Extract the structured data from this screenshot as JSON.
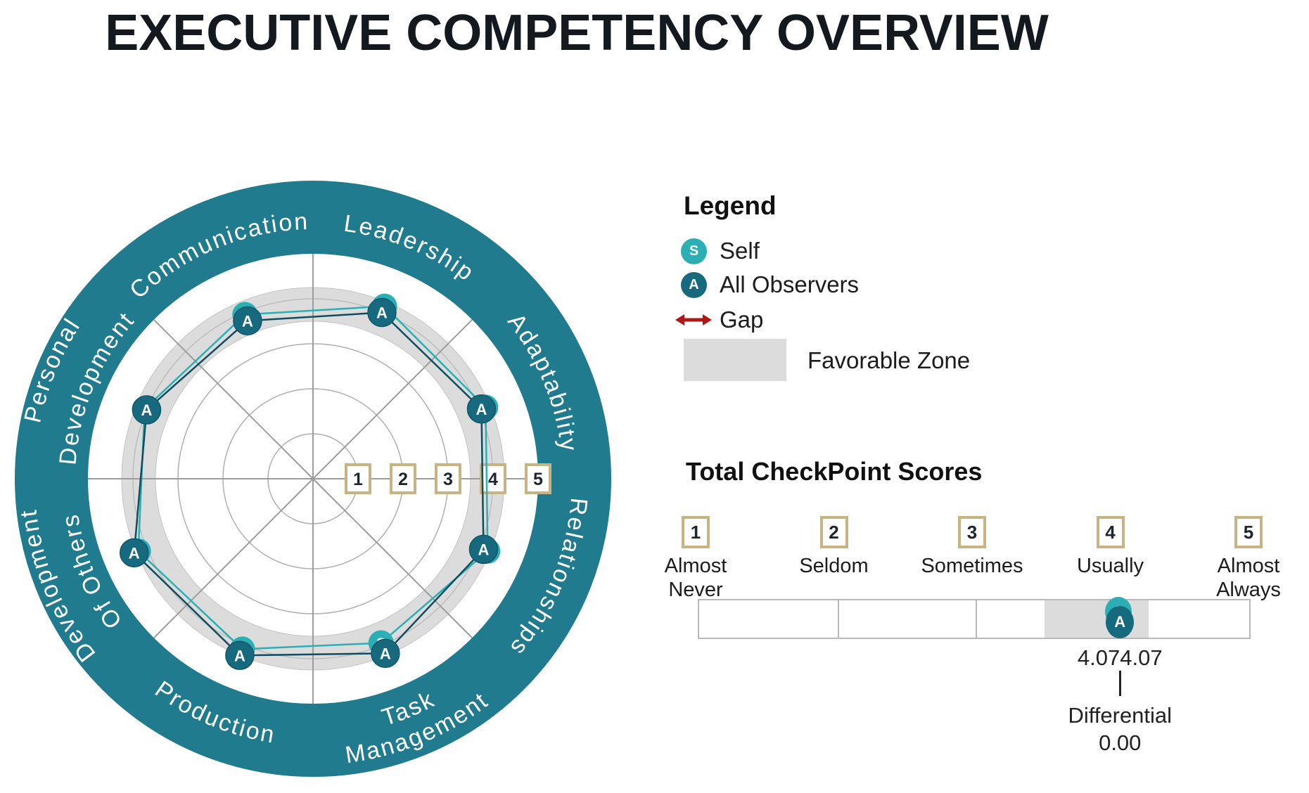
{
  "title": "EXECUTIVE COMPETENCY OVERVIEW",
  "legend": {
    "heading": "Legend",
    "items": [
      {
        "symbol": "S",
        "label": "Self"
      },
      {
        "symbol": "A",
        "label": "All Observers"
      },
      {
        "symbol": "gap-arrow",
        "label": "Gap"
      },
      {
        "symbol": "favorable-swatch",
        "label": "Favorable Zone"
      }
    ]
  },
  "colors": {
    "ring_teal": "#1F7B8D",
    "self_teal": "#2BAFB4",
    "observers_dark": "#17697E",
    "observers_dark_edge": "#10566A",
    "self_line": "#2BAFB4",
    "observers_line": "#114C5F",
    "favorable_gray": "#DCDCDC",
    "grid_gray": "#AFAFAF",
    "spoke_gray": "#9C9C9C",
    "box_border_tan": "#C8B382",
    "gap_red": "#AE1917",
    "text_black": "#1A1A1A"
  },
  "chart_data": [
    {
      "type": "radar",
      "title": "",
      "categories": [
        "Adaptability",
        "Leadership",
        "Communication",
        "Personal Development",
        "Development Of Others",
        "Production",
        "Task Management",
        "Relationships"
      ],
      "angles_deg": [
        22.5,
        67.5,
        112.5,
        157.5,
        202.5,
        247.5,
        292.5,
        337.5
      ],
      "scale": {
        "min": 0,
        "max": 5,
        "ticks": [
          1,
          2,
          3,
          4,
          5
        ]
      },
      "favorable_zone": [
        3.5,
        4.25
      ],
      "grid": true,
      "series": [
        {
          "name": "Self",
          "symbol": "S",
          "values": [
            4.15,
            4.15,
            3.95,
            4.05,
            4.2,
            4.1,
            3.95,
            4.2
          ]
        },
        {
          "name": "All Observers",
          "symbol": "A",
          "values": [
            4.05,
            4.0,
            3.8,
            4.0,
            4.3,
            4.25,
            4.2,
            4.1
          ]
        }
      ]
    },
    {
      "type": "scale",
      "title": "Total CheckPoint Scores",
      "min": 1,
      "max": 5,
      "ticks": [
        {
          "value": 1,
          "label": "Almost Never"
        },
        {
          "value": 2,
          "label": "Seldom"
        },
        {
          "value": 3,
          "label": "Sometimes"
        },
        {
          "value": 4,
          "label": "Usually"
        },
        {
          "value": 5,
          "label": "Almost Always"
        }
      ],
      "favorable_zone": [
        3.5,
        4.25
      ],
      "markers": [
        {
          "name": "Self",
          "symbol": "S",
          "value": "4.07"
        },
        {
          "name": "All Observers",
          "symbol": "A",
          "value": "4.07"
        }
      ],
      "differential_label": "Differential",
      "differential": "0.00"
    }
  ]
}
